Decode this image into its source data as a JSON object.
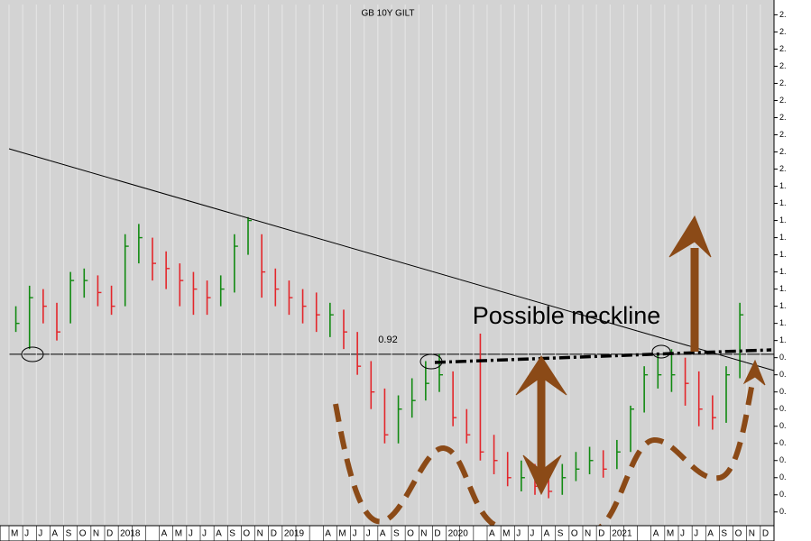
{
  "chart_data": {
    "type": "ohlc",
    "title": "GB 10Y GILT",
    "annotation": "Possible neckline",
    "level": 0.92,
    "categories": [
      "M",
      "J",
      "J",
      "A",
      "S",
      "O",
      "N",
      "D",
      "2018",
      null,
      null,
      "A",
      "M",
      "J",
      "J",
      "A",
      "S",
      "O",
      "N",
      "D",
      "2019",
      null,
      null,
      "A",
      "M",
      "J",
      "J",
      "A",
      "S",
      "O",
      "N",
      "D",
      "2020",
      null,
      null,
      "A",
      "M",
      "J",
      "J",
      "A",
      "S",
      "O",
      "N",
      "D",
      "2021",
      null,
      null,
      "A",
      "M",
      "J",
      "J",
      "A",
      "S",
      "O",
      "N",
      "D"
    ],
    "close": [
      1.1,
      1.25,
      1.2,
      1.05,
      1.35,
      1.35,
      1.28,
      1.2,
      1.55,
      1.6,
      1.45,
      1.42,
      1.35,
      1.3,
      1.25,
      1.3,
      1.55,
      1.7,
      1.4,
      1.3,
      1.25,
      1.2,
      1.15,
      1.15,
      1.05,
      0.85,
      0.7,
      0.45,
      0.6,
      0.65,
      0.75,
      0.8,
      0.55,
      0.45,
      0.35,
      0.3,
      0.2,
      0.2,
      0.15,
      0.12,
      0.2,
      0.25,
      0.3,
      0.25,
      0.35,
      0.6,
      0.8,
      0.8,
      0.8,
      0.75,
      0.6,
      0.55,
      0.8,
      1.15,
      null,
      null
    ],
    "high": [
      1.2,
      1.32,
      1.3,
      1.22,
      1.4,
      1.42,
      1.38,
      1.32,
      1.62,
      1.68,
      1.6,
      1.52,
      1.45,
      1.4,
      1.35,
      1.38,
      1.62,
      1.72,
      1.62,
      1.42,
      1.35,
      1.3,
      1.28,
      1.22,
      1.18,
      1.05,
      0.88,
      0.72,
      0.68,
      0.78,
      0.88,
      0.92,
      0.82,
      0.6,
      1.04,
      0.45,
      0.35,
      0.3,
      0.28,
      0.25,
      0.28,
      0.35,
      0.38,
      0.36,
      0.42,
      0.62,
      0.85,
      0.92,
      0.95,
      0.9,
      0.82,
      0.68,
      0.85,
      1.22,
      null,
      null
    ],
    "low": [
      1.05,
      0.95,
      1.1,
      1.0,
      1.1,
      1.25,
      1.2,
      1.15,
      1.2,
      1.45,
      1.35,
      1.3,
      1.2,
      1.15,
      1.15,
      1.2,
      1.28,
      1.5,
      1.25,
      1.2,
      1.15,
      1.1,
      1.05,
      1.02,
      0.95,
      0.8,
      0.6,
      0.4,
      0.4,
      0.55,
      0.65,
      0.7,
      0.5,
      0.4,
      0.3,
      0.22,
      0.15,
      0.12,
      0.1,
      0.08,
      0.1,
      0.18,
      0.22,
      0.2,
      0.25,
      0.35,
      0.58,
      0.72,
      0.7,
      0.62,
      0.5,
      0.48,
      0.52,
      0.78,
      null,
      null
    ],
    "up_color": "#128a12",
    "down_color": "#e3262b",
    "ylim": [
      -0.08,
      2.96
    ],
    "yticks": [
      {
        "value": 0,
        "label": "0."
      },
      {
        "value": 0.1,
        "label": "0."
      },
      {
        "value": 0.2,
        "label": "0."
      },
      {
        "value": 0.3,
        "label": "0."
      },
      {
        "value": 0.4,
        "label": "0."
      },
      {
        "value": 0.5,
        "label": "0."
      },
      {
        "value": 0.6,
        "label": "0."
      },
      {
        "value": 0.7,
        "label": "0."
      },
      {
        "value": 0.8,
        "label": "0."
      },
      {
        "value": 0.9,
        "label": "0."
      },
      {
        "value": 1.0,
        "label": "1."
      },
      {
        "value": 1.1,
        "label": "1."
      },
      {
        "value": 1.2,
        "label": "1."
      },
      {
        "value": 1.3,
        "label": "1."
      },
      {
        "value": 1.4,
        "label": "1."
      },
      {
        "value": 1.5,
        "label": "1."
      },
      {
        "value": 1.6,
        "label": "1."
      },
      {
        "value": 1.7,
        "label": "1."
      },
      {
        "value": 1.8,
        "label": "1."
      },
      {
        "value": 1.9,
        "label": "1."
      },
      {
        "value": 2.0,
        "label": "2."
      },
      {
        "value": 2.1,
        "label": "2."
      },
      {
        "value": 2.2,
        "label": "2."
      },
      {
        "value": 2.3,
        "label": "2."
      },
      {
        "value": 2.4,
        "label": "2."
      },
      {
        "value": 2.5,
        "label": "2."
      },
      {
        "value": 2.6,
        "label": "2."
      },
      {
        "value": 2.7,
        "label": "2."
      },
      {
        "value": 2.8,
        "label": "2."
      },
      {
        "value": 2.9,
        "label": "2."
      }
    ]
  }
}
